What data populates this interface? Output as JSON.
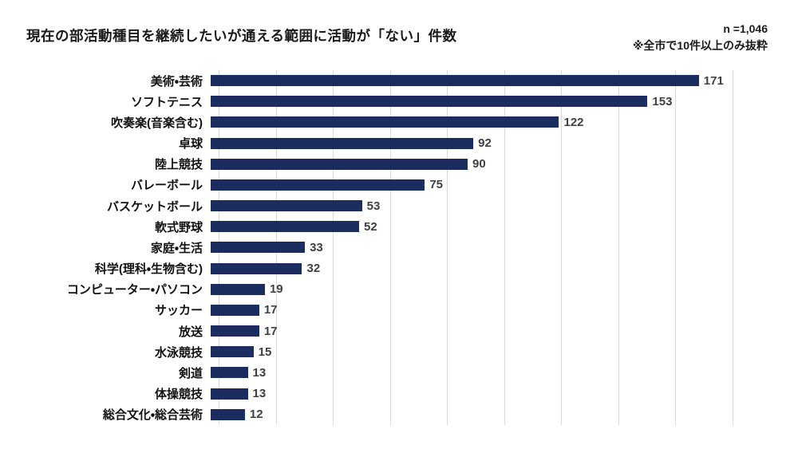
{
  "title": "現在の部活動種目を継続したいが通える範囲に活動が「ない」件数",
  "annotation": {
    "n_label": "n =1,046",
    "note": "※全市で10件以上のみ抜粋"
  },
  "chart_data": {
    "type": "bar",
    "orientation": "horizontal",
    "title": "現在の部活動種目を継続したいが通える範囲に活動が「ない」件数",
    "categories": [
      "美術・芸術",
      "ソフトテニス",
      "吹奏楽(音楽含む)",
      "卓球",
      "陸上競技",
      "バレーボール",
      "バスケットボール",
      "軟式野球",
      "家庭・生活",
      "科学(理科・生物含む)",
      "コンピューター・パソコン",
      "サッカー",
      "放送",
      "水泳競技",
      "剣道",
      "体操競技",
      "総合文化・総合芸術"
    ],
    "values": [
      171,
      153,
      122,
      92,
      90,
      75,
      53,
      52,
      33,
      32,
      19,
      17,
      17,
      15,
      13,
      13,
      12
    ],
    "xlabel": "",
    "ylabel": "",
    "xlim": [
      0,
      180
    ],
    "gridline_interval": 20,
    "grid": true,
    "legend_position": "none",
    "bar_color": "#1b2d5e",
    "value_label_color": "#404040",
    "gridline_color": "#d9d9d9"
  }
}
